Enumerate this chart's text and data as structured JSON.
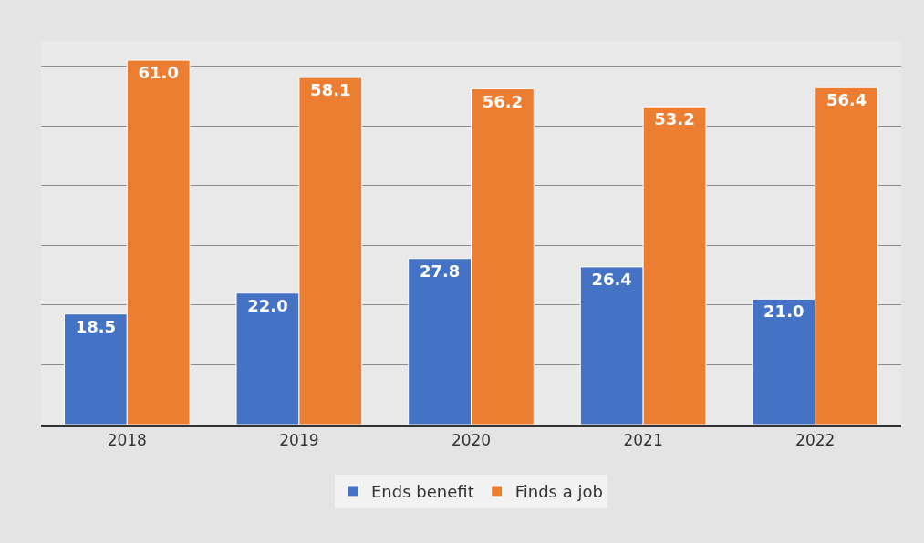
{
  "chart_data": {
    "type": "bar",
    "categories": [
      "2018",
      "2019",
      "2020",
      "2021",
      "2022"
    ],
    "series": [
      {
        "name": "Ends benefit",
        "color": "#4472c4",
        "values": [
          18.5,
          22.0,
          27.8,
          26.4,
          21.0
        ],
        "value_labels": [
          "18.5",
          "22.0",
          "27.8",
          "26.4",
          "21.0"
        ]
      },
      {
        "name": "Finds a job",
        "color": "#ed7d31",
        "values": [
          61.0,
          58.1,
          56.2,
          53.2,
          56.4
        ],
        "value_labels": [
          "61.0",
          "58.1",
          "56.2",
          "53.2",
          "56.4"
        ]
      }
    ],
    "yticks": [
      {
        "value": 0,
        "label": null
      },
      {
        "value": 10,
        "label": null
      },
      {
        "value": 20,
        "label": null
      },
      {
        "value": 30,
        "label": null
      },
      {
        "value": 40,
        "label": null
      },
      {
        "value": 50,
        "label": null
      },
      {
        "value": 60,
        "label": null
      }
    ],
    "tick_labels": "x",
    "grid": "y",
    "legend": "bottom"
  }
}
